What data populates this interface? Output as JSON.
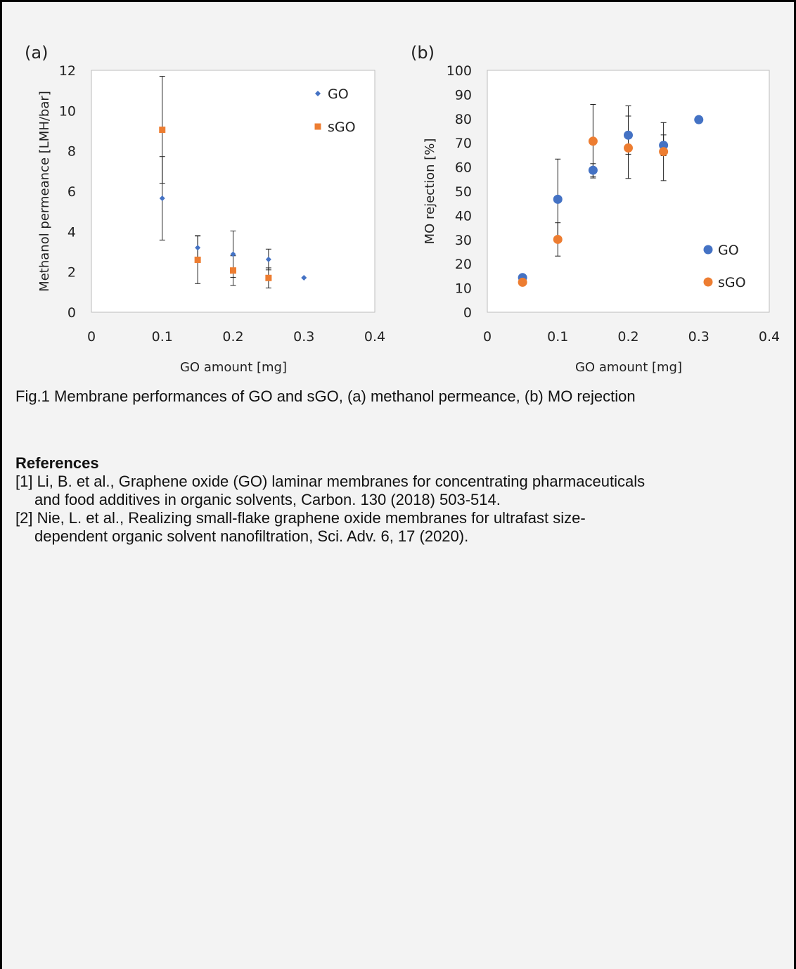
{
  "chart_data": [
    {
      "type": "scatter",
      "panel_label": "(a)",
      "xlabel": "GO amount [mg]",
      "ylabel": "Methanol permeance [LMH/bar]",
      "xlim": [
        0,
        0.4
      ],
      "ylim": [
        0,
        12
      ],
      "x_ticks": [
        "0",
        "0.1",
        "0.2",
        "0.3",
        "0.4"
      ],
      "y_ticks": [
        "0",
        "2",
        "4",
        "6",
        "8",
        "10",
        "12"
      ],
      "legend_position": "top-right",
      "series": [
        {
          "name": "GO",
          "marker": "diamond",
          "color": "#4472c4",
          "points": [
            {
              "x": 0.1,
              "y": 5.65,
              "err_low": 3.58,
              "err_high": 7.72
            },
            {
              "x": 0.15,
              "y": 3.2,
              "err_low": 2.6,
              "err_high": 3.8
            },
            {
              "x": 0.2,
              "y": 2.88,
              "err_low": 1.73,
              "err_high": 4.03
            },
            {
              "x": 0.25,
              "y": 2.62,
              "err_low": 2.1,
              "err_high": 3.13
            },
            {
              "x": 0.3,
              "y": 1.71
            }
          ]
        },
        {
          "name": "sGO",
          "marker": "square",
          "color": "#ed7d31",
          "points": [
            {
              "x": 0.1,
              "y": 9.05,
              "err_low": 6.4,
              "err_high": 11.7
            },
            {
              "x": 0.15,
              "y": 2.6,
              "err_low": 1.42,
              "err_high": 3.78
            },
            {
              "x": 0.2,
              "y": 2.07,
              "err_low": 1.33,
              "err_high": 2.8
            },
            {
              "x": 0.25,
              "y": 1.7,
              "err_low": 1.2,
              "err_high": 2.2
            }
          ]
        }
      ]
    },
    {
      "type": "scatter",
      "panel_label": "(b)",
      "xlabel": "GO amount [mg]",
      "ylabel": "MO rejection [%]",
      "xlim": [
        0,
        0.4
      ],
      "ylim": [
        0,
        100
      ],
      "x_ticks": [
        "0",
        "0.1",
        "0.2",
        "0.3",
        "0.4"
      ],
      "y_ticks": [
        "0",
        "10",
        "20",
        "30",
        "40",
        "50",
        "60",
        "70",
        "80",
        "90",
        "100"
      ],
      "legend_position": "bottom-right",
      "series": [
        {
          "name": "GO",
          "marker": "circle",
          "color": "#4472c4",
          "points": [
            {
              "x": 0.05,
              "y": 14.3
            },
            {
              "x": 0.1,
              "y": 46.7,
              "err_low": 30.0,
              "err_high": 63.3
            },
            {
              "x": 0.15,
              "y": 58.7,
              "err_low": 56.0,
              "err_high": 61.4
            },
            {
              "x": 0.2,
              "y": 73.2,
              "err_low": 65.3,
              "err_high": 81.1
            },
            {
              "x": 0.25,
              "y": 69.0,
              "err_low": 64.7,
              "err_high": 73.3
            },
            {
              "x": 0.3,
              "y": 79.6
            }
          ]
        },
        {
          "name": "sGO",
          "marker": "circle",
          "color": "#ed7d31",
          "points": [
            {
              "x": 0.05,
              "y": 12.4
            },
            {
              "x": 0.1,
              "y": 30.1,
              "err_low": 23.2,
              "err_high": 37.0
            },
            {
              "x": 0.15,
              "y": 70.7,
              "err_low": 55.5,
              "err_high": 85.9
            },
            {
              "x": 0.2,
              "y": 67.9,
              "err_low": 55.3,
              "err_high": 85.3
            },
            {
              "x": 0.25,
              "y": 66.4,
              "err_low": 54.4,
              "err_high": 78.4
            }
          ]
        }
      ]
    }
  ],
  "caption": "Fig.1 Membrane performances of GO and sGO, (a) methanol permeance, (b) MO rejection",
  "references": {
    "heading": "References",
    "items": [
      {
        "line1": "[1] Li, B. et al., Graphene oxide (GO) laminar membranes for concentrating pharmaceuticals",
        "line2": "and food additives in organic solvents, Carbon. 130 (2018) 503-514."
      },
      {
        "line1": "[2] Nie, L. et al., Realizing small-flake graphene oxide membranes for ultrafast size-",
        "line2": "dependent organic solvent nanofiltration, Sci. Adv. 6, 17 (2020)."
      }
    ]
  }
}
